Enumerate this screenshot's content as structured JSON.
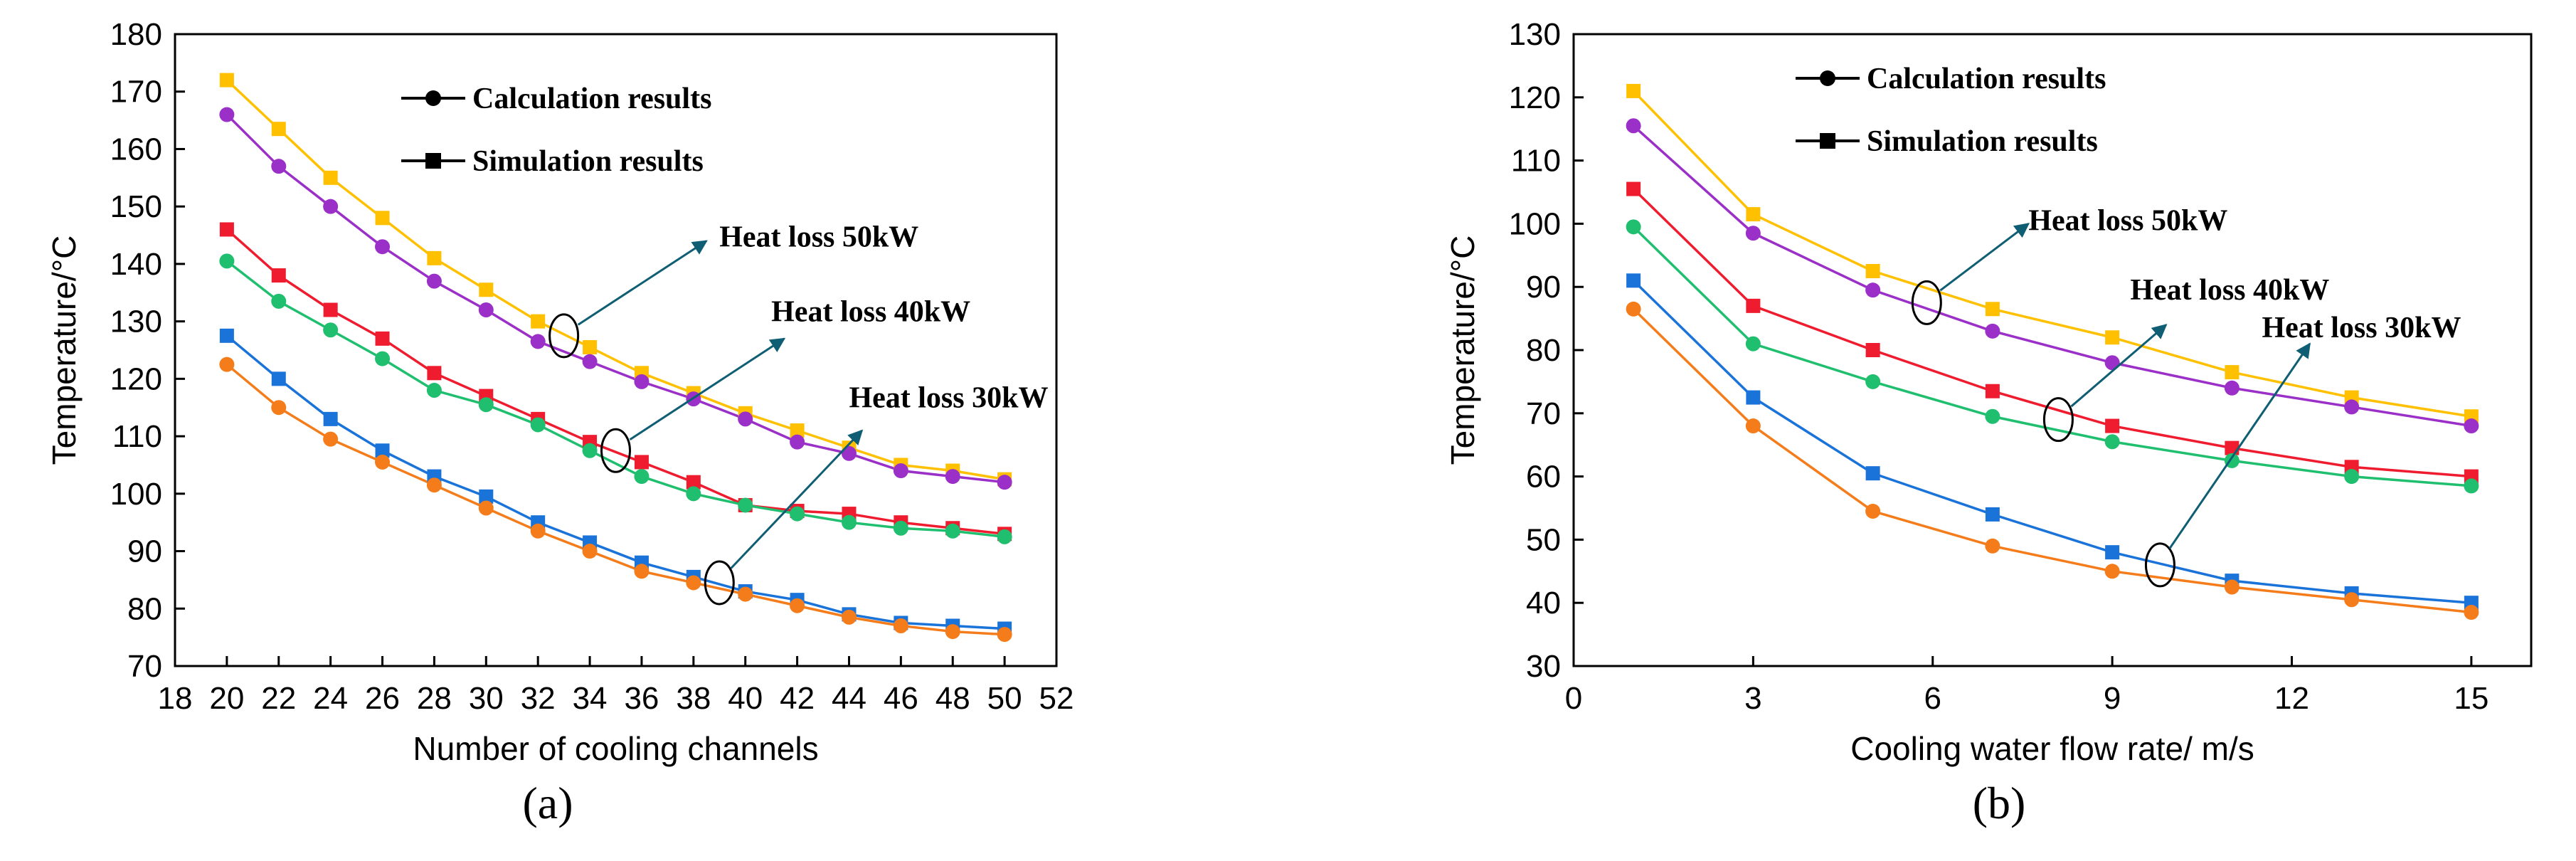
{
  "chart_data": [
    {
      "type": "line",
      "panel_label": "(a)",
      "xlabel": "Number of cooling channels",
      "ylabel": "Temperature/°C",
      "xlim": [
        18,
        52
      ],
      "ylim": [
        70,
        180
      ],
      "xticks": [
        18,
        20,
        22,
        24,
        26,
        28,
        30,
        32,
        34,
        36,
        38,
        40,
        42,
        44,
        46,
        48,
        50,
        52
      ],
      "yticks": [
        70,
        80,
        90,
        100,
        110,
        120,
        130,
        140,
        150,
        160,
        170,
        180
      ],
      "grid": false,
      "legend": {
        "placement": "top-center",
        "entries": [
          {
            "label": "Calculation results",
            "marker": "circle"
          },
          {
            "label": "Simulation results",
            "marker": "square"
          }
        ]
      },
      "annotations": [
        {
          "text": "Heat loss 50kW",
          "ellipse_at": [
            33,
            127.5
          ],
          "arrow_to": [
            38.5,
            144
          ],
          "text_at": [
            39,
            143
          ]
        },
        {
          "text": "Heat loss 40kW",
          "ellipse_at": [
            35,
            107.5
          ],
          "arrow_to": [
            41.5,
            127
          ],
          "text_at": [
            41,
            130
          ]
        },
        {
          "text": "Heat loss 30kW",
          "ellipse_at": [
            39,
            84.5
          ],
          "arrow_to": [
            44.5,
            111
          ],
          "text_at": [
            44,
            115
          ]
        }
      ],
      "x": [
        20,
        22,
        24,
        26,
        28,
        30,
        32,
        34,
        36,
        38,
        40,
        42,
        44,
        46,
        48,
        50
      ],
      "series": [
        {
          "name": "Heat loss 50kW simulation",
          "marker": "square",
          "color": "#FFC000",
          "values": [
            172,
            163.5,
            155,
            148,
            141,
            135.5,
            130,
            125.5,
            121,
            117.5,
            114,
            111,
            108,
            105,
            104,
            102.5
          ]
        },
        {
          "name": "Heat loss 50kW calculation",
          "marker": "circle",
          "color": "#9B30C8",
          "values": [
            166,
            157,
            150,
            143,
            137,
            132,
            126.5,
            123,
            119.5,
            116.5,
            113,
            109,
            107,
            104,
            103,
            102
          ]
        },
        {
          "name": "Heat loss 40kW simulation",
          "marker": "square",
          "color": "#EE1C2E",
          "values": [
            146,
            138,
            132,
            127,
            121,
            117,
            113,
            109,
            105.5,
            102,
            98,
            97,
            96.5,
            95,
            94,
            93
          ]
        },
        {
          "name": "Heat loss 40kW calculation",
          "marker": "circle",
          "color": "#1FBF6F",
          "values": [
            140.5,
            133.5,
            128.5,
            123.5,
            118,
            115.5,
            112,
            107.5,
            103,
            100,
            98,
            96.5,
            95,
            94,
            93.5,
            92.5
          ]
        },
        {
          "name": "Heat loss 30kW simulation",
          "marker": "square",
          "color": "#1A73D9",
          "values": [
            127.5,
            120,
            113,
            107.5,
            103,
            99.5,
            95,
            91.5,
            88,
            85.5,
            83,
            81.5,
            79,
            77.5,
            77,
            76.5
          ]
        },
        {
          "name": "Heat loss 30kW calculation",
          "marker": "circle",
          "color": "#F47C1A",
          "values": [
            122.5,
            115,
            109.5,
            105.5,
            101.5,
            97.5,
            93.5,
            90,
            86.5,
            84.5,
            82.5,
            80.5,
            78.5,
            77,
            76,
            75.5
          ]
        }
      ]
    },
    {
      "type": "line",
      "panel_label": "(b)",
      "xlabel": "Cooling water flow rate/ m/s",
      "ylabel": "Temperature/°C",
      "xlim": [
        0,
        16
      ],
      "ylim": [
        30,
        130
      ],
      "xticks": [
        0,
        3,
        6,
        9,
        12,
        15
      ],
      "yticks": [
        30,
        40,
        50,
        60,
        70,
        80,
        90,
        100,
        110,
        120,
        130
      ],
      "grid": false,
      "legend": {
        "placement": "top-center",
        "entries": [
          {
            "label": "Calculation results",
            "marker": "circle"
          },
          {
            "label": "Simulation results",
            "marker": "square"
          }
        ]
      },
      "annotations": [
        {
          "text": "Heat loss 50kW",
          "ellipse_at": [
            5.9,
            87.5
          ],
          "arrow_to": [
            7.6,
            100
          ],
          "text_at": [
            7.6,
            99
          ]
        },
        {
          "text": "Heat loss 40kW",
          "ellipse_at": [
            8.1,
            69
          ],
          "arrow_to": [
            9.9,
            84
          ],
          "text_at": [
            9.3,
            88
          ]
        },
        {
          "text": "Heat loss 30kW",
          "ellipse_at": [
            9.8,
            46
          ],
          "arrow_to": [
            12.3,
            81
          ],
          "text_at": [
            11.5,
            82
          ]
        }
      ],
      "x": [
        1,
        3,
        5,
        7,
        9,
        11,
        13,
        15
      ],
      "series": [
        {
          "name": "Heat loss 50kW simulation",
          "marker": "square",
          "color": "#FFC000",
          "values": [
            121,
            101.5,
            92.5,
            86.5,
            82,
            76.5,
            72.5,
            69.5
          ]
        },
        {
          "name": "Heat loss 50kW calculation",
          "marker": "circle",
          "color": "#9B30C8",
          "values": [
            115.5,
            98.5,
            89.5,
            83,
            78,
            74,
            71,
            68
          ]
        },
        {
          "name": "Heat loss 40kW simulation",
          "marker": "square",
          "color": "#EE1C2E",
          "values": [
            105.5,
            87,
            80,
            73.5,
            68,
            64.5,
            61.5,
            60
          ]
        },
        {
          "name": "Heat loss 40kW calculation",
          "marker": "circle",
          "color": "#1FBF6F",
          "values": [
            99.5,
            81,
            75,
            69.5,
            65.5,
            62.5,
            60,
            58.5
          ]
        },
        {
          "name": "Heat loss 30kW simulation",
          "marker": "square",
          "color": "#1A73D9",
          "values": [
            91,
            72.5,
            60.5,
            54,
            48,
            43.5,
            41.5,
            40
          ]
        },
        {
          "name": "Heat loss 30kW calculation",
          "marker": "circle",
          "color": "#F47C1A",
          "values": [
            86.5,
            68,
            54.5,
            49,
            45,
            42.5,
            40.5,
            38.5
          ]
        }
      ]
    }
  ],
  "colors": {
    "axis": "#000000",
    "annotation_arrow": "#0F5E73",
    "legend_marker": "#000000"
  }
}
